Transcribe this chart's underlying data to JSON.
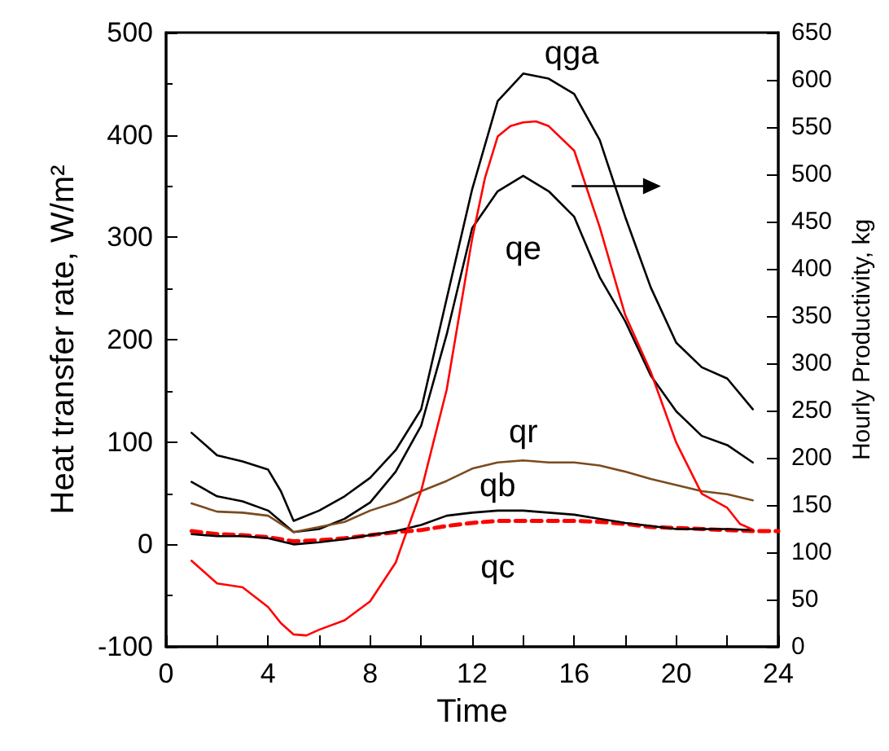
{
  "chart_data": {
    "type": "line",
    "xlabel": "Time",
    "ylabel": "Heat transfer rate, W/m²",
    "y2label": "Hourly Productivity, kg",
    "xlim": [
      0,
      24
    ],
    "xticks": [
      0,
      {
        "value": 2,
        "label": null
      },
      4,
      {
        "value": 6,
        "label": null
      },
      8,
      {
        "value": 10,
        "label": null
      },
      12,
      {
        "value": 14,
        "label": null
      },
      16,
      {
        "value": 18,
        "label": null
      },
      20,
      {
        "value": 22,
        "label": null
      },
      24
    ],
    "ylim": [
      -100,
      500
    ],
    "yticks": [
      -100,
      0,
      100,
      200,
      300,
      400,
      500
    ],
    "y2lim": [
      0,
      650
    ],
    "y2ticks": [
      0,
      50,
      100,
      150,
      200,
      250,
      300,
      350,
      400,
      450,
      500,
      550,
      600,
      650
    ],
    "grid": false,
    "marker": "none",
    "series": [
      {
        "name": "qga",
        "color": "#000000",
        "x": [
          1,
          2,
          3,
          4,
          4.5,
          5,
          6,
          7,
          8,
          9,
          10,
          11,
          12,
          13,
          14,
          15,
          16,
          17,
          18,
          19,
          20,
          21,
          22,
          23
        ],
        "values": [
          109,
          87,
          81,
          73,
          52,
          23,
          33,
          47,
          65,
          92,
          132,
          240,
          347,
          433,
          460,
          455,
          440,
          395,
          320,
          251,
          197,
          173,
          162,
          132
        ]
      },
      {
        "name": "qe",
        "color": "#000000",
        "x": [
          1,
          2,
          3,
          4,
          5,
          6,
          7,
          8,
          9,
          10,
          11,
          12,
          13,
          14,
          15,
          16,
          17,
          18,
          19,
          20,
          21,
          22,
          23
        ],
        "values": [
          61,
          47,
          42,
          33,
          12,
          15,
          25,
          41,
          71,
          116,
          205,
          309,
          345,
          360,
          345,
          320,
          261,
          218,
          165,
          130,
          106,
          97,
          80
        ]
      },
      {
        "name": "qr",
        "color": "#7b4a1e",
        "x": [
          1,
          2,
          3,
          4,
          5,
          6,
          7,
          8,
          9,
          10,
          11,
          12,
          13,
          14,
          15,
          16,
          17,
          18,
          19,
          20,
          21,
          22,
          23
        ],
        "values": [
          40,
          32,
          31,
          28,
          12,
          17,
          22,
          33,
          41,
          52,
          62,
          74,
          80,
          82,
          80,
          80,
          77,
          71,
          64,
          58,
          52,
          49,
          43
        ]
      },
      {
        "name": "qb",
        "color": "#000000",
        "x": [
          1,
          2,
          3,
          4,
          5,
          6,
          7,
          8,
          9,
          10,
          11,
          12,
          13,
          14,
          15,
          16,
          17,
          18,
          19,
          20,
          21,
          22,
          23
        ],
        "values": [
          10,
          8,
          8,
          6,
          0,
          2,
          5,
          9,
          13,
          19,
          28,
          31,
          33,
          33,
          31,
          29,
          25,
          21,
          18,
          15,
          15,
          15,
          14
        ]
      },
      {
        "name": "qc",
        "color": "#ff0000",
        "line_style": "dashed",
        "x": [
          1,
          2,
          3,
          4,
          5,
          6,
          7,
          8,
          9,
          10,
          11,
          12,
          13,
          14,
          15,
          16,
          17,
          18,
          19,
          20,
          21,
          22,
          23,
          24
        ],
        "values": [
          13,
          10,
          9,
          7,
          3,
          4,
          6,
          9,
          12,
          14,
          18,
          21,
          23,
          23,
          23,
          23,
          22,
          20,
          17,
          16,
          15,
          14,
          13,
          13
        ]
      },
      {
        "color": "#ff0000",
        "axis": "y2",
        "x": [
          1,
          2,
          3,
          4,
          4.5,
          5,
          5.5,
          6,
          7,
          8,
          9,
          10,
          11,
          12,
          12.5,
          13,
          13.5,
          14,
          14.5,
          15,
          16,
          17,
          18,
          19,
          20,
          21,
          22,
          22.5,
          23
        ],
        "values": [
          91,
          67,
          63,
          42,
          25,
          13,
          12,
          18,
          28,
          48,
          89,
          165,
          272,
          432,
          496,
          540,
          551,
          555,
          556,
          551,
          525,
          444,
          351,
          291,
          216,
          162,
          147,
          130,
          124
        ]
      }
    ]
  }
}
